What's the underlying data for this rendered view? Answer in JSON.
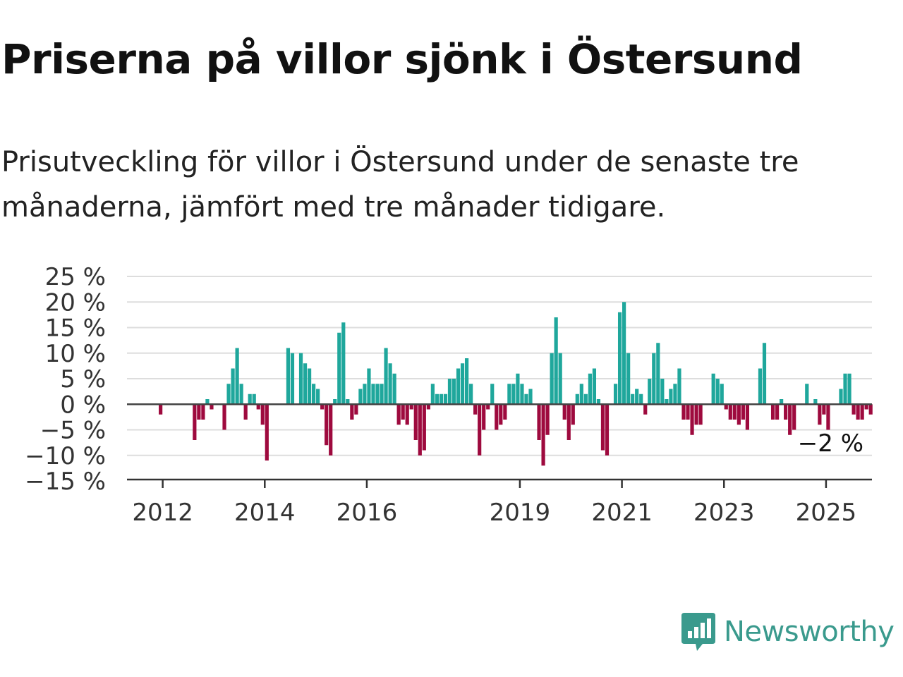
{
  "title": "Priserna på villor sjönk i Östersund",
  "subtitle": "Prisutveckling för villor i Östersund under de senaste tre månaderna, jämfört med tre månader tidigare.",
  "brand": {
    "name": "Newsworthy"
  },
  "colors": {
    "positive": "#1fa79c",
    "negative": "#9e0a3e",
    "grid": "#dddddd",
    "axis": "#333333",
    "brand": "#3a9a8d"
  },
  "chart_data": {
    "type": "bar",
    "title": "",
    "xlabel": "",
    "ylabel": "",
    "ylim": [
      -15,
      25
    ],
    "yticks": [
      25,
      20,
      15,
      10,
      5,
      0,
      -5,
      -10,
      -15
    ],
    "ytick_labels": [
      "25 %",
      "20 %",
      "15 %",
      "10 %",
      "5 %",
      "0 %",
      "−5 %",
      "−10 %",
      "−15 %"
    ],
    "xticks": [
      2012,
      2014,
      2016,
      2019,
      2021,
      2023,
      2025
    ],
    "xtick_labels": [
      "2012",
      "2014",
      "2016",
      "2019",
      "2021",
      "2023",
      "2025"
    ],
    "xlim": [
      2011.3,
      2025.9
    ],
    "grid": true,
    "start": {
      "year": 2011,
      "month": 7
    },
    "values": [
      0,
      0,
      0,
      0,
      0,
      -2,
      0,
      0,
      0,
      0,
      0,
      0,
      0,
      -7,
      -3,
      -3,
      1,
      -1,
      0,
      0,
      -5,
      4,
      7,
      11,
      4,
      -3,
      2,
      2,
      -1,
      -4,
      -11,
      0,
      0,
      0,
      0,
      11,
      10,
      0,
      10,
      8,
      7,
      4,
      3,
      -1,
      -8,
      -10,
      1,
      14,
      16,
      1,
      -3,
      -2,
      3,
      4,
      7,
      4,
      4,
      4,
      11,
      8,
      6,
      -4,
      -3,
      -4,
      -1,
      -7,
      -10,
      -9,
      -1,
      4,
      2,
      2,
      2,
      5,
      5,
      7,
      8,
      9,
      4,
      -2,
      -10,
      -5,
      -1,
      4,
      -5,
      -4,
      -3,
      4,
      4,
      6,
      4,
      2,
      3,
      0,
      -7,
      -12,
      -6,
      10,
      17,
      10,
      -3,
      -7,
      -4,
      2,
      4,
      2,
      6,
      7,
      1,
      -9,
      -10,
      0,
      4,
      18,
      20,
      10,
      2,
      3,
      2,
      -2,
      5,
      10,
      12,
      5,
      1,
      3,
      4,
      7,
      -3,
      -3,
      -6,
      -4,
      -4,
      0,
      0,
      6,
      5,
      4,
      -1,
      -3,
      -3,
      -4,
      -3,
      -5,
      0,
      0,
      7,
      12,
      0,
      -3,
      -3,
      1,
      -3,
      -6,
      -5,
      0,
      0,
      4,
      0,
      1,
      -4,
      -2,
      -5,
      0,
      0,
      3,
      6,
      6,
      -2,
      -3,
      -3,
      -1,
      -2
    ],
    "annotation": {
      "label": "−2 %",
      "value": -2
    }
  }
}
